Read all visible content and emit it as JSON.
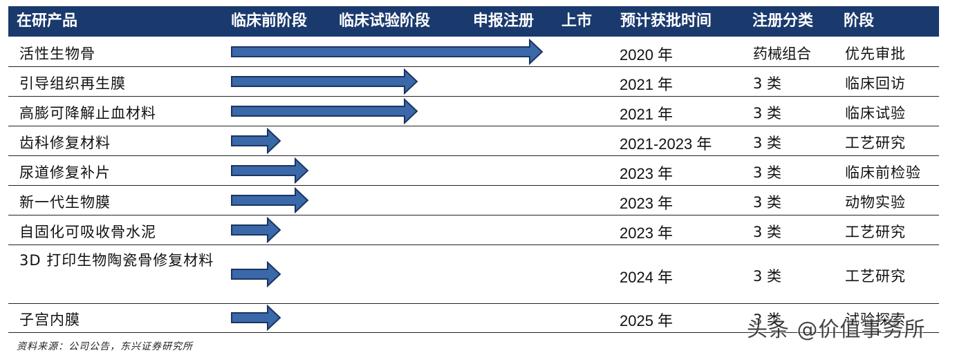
{
  "headers": {
    "product": "在研产品",
    "preclinical": "临床前阶段",
    "clinical": "临床试验阶段",
    "registration": "申报注册",
    "market": "上市",
    "approval_time": "预计获批时间",
    "reg_class": "注册分类",
    "stage": "阶段"
  },
  "rows": [
    {
      "product": "活性生物骨",
      "year": "2020 年",
      "class": "药械组合",
      "stage": "优先审批",
      "progress_fraction": 0.57
    },
    {
      "product": "引导组织再生膜",
      "year": "2021 年",
      "class": "3 类",
      "stage": "临床回访",
      "progress_fraction": 0.34
    },
    {
      "product": "高膨可降解止血材料",
      "year": "2021 年",
      "class": "3 类",
      "stage": "临床试验",
      "progress_fraction": 0.34
    },
    {
      "product": "齿科修复材料",
      "year": "2021-2023 年",
      "class": "3 类",
      "stage": "工艺研究",
      "progress_fraction": 0.09
    },
    {
      "product": "尿道修复补片",
      "year": "2023 年",
      "class": "3 类",
      "stage": "临床前检验",
      "progress_fraction": 0.14
    },
    {
      "product": "新一代生物膜",
      "year": "2023 年",
      "class": "3 类",
      "stage": "动物实验",
      "progress_fraction": 0.14
    },
    {
      "product": "自固化可吸收骨水泥",
      "year": "2023 年",
      "class": "3 类",
      "stage": "工艺研究",
      "progress_fraction": 0.09
    },
    {
      "product": "3D 打印生物陶瓷骨修复材料",
      "year": "2024 年",
      "class": "3 类",
      "stage": "工艺研究",
      "progress_fraction": 0.09
    },
    {
      "product": "子宫内膜",
      "year": "2025 年",
      "class": "3 类",
      "stage": "试验探索",
      "progress_fraction": 0.09
    }
  ],
  "source": "资料来源：公司公告，东兴证券研究所",
  "watermark": "头条 @价值事务所",
  "colors": {
    "header_bg": "#1a3a6e",
    "arrow_fill": "#3a68a8",
    "arrow_stroke": "#1a3560"
  }
}
